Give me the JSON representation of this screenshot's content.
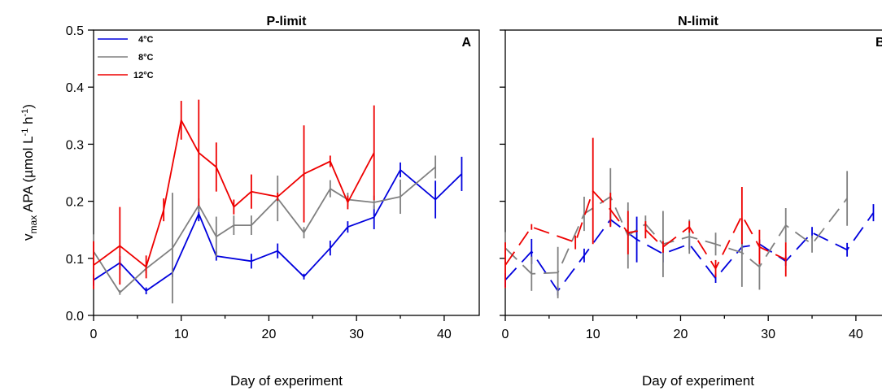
{
  "chart_data": [
    {
      "type": "line",
      "title": "P-limit",
      "panel_label": "A",
      "xlabel": "Day of experiment",
      "ylabel": "v",
      "ylabel_sub": "max",
      "ylabel_rest": " APA (µmol L",
      "ylabel_sup1": "-1",
      "ylabel_mid": " h",
      "ylabel_sup2": "-1",
      "ylabel_end": ")",
      "xlim": [
        0,
        44
      ],
      "ylim": [
        0.0,
        0.5
      ],
      "xticks": [
        "0",
        "10",
        "20",
        "30",
        "40"
      ],
      "yticks": [
        "0.0",
        "0.1",
        "0.2",
        "0.3",
        "0.4",
        "0.5"
      ],
      "legend": {
        "position": "top-left"
      },
      "series": [
        {
          "name": "4°C",
          "color": "#0000dd",
          "dash": "solid",
          "points": [
            {
              "x": 0,
              "y": 0.062,
              "err": 0.01
            },
            {
              "x": 3,
              "y": 0.092,
              "err": 0.012
            },
            {
              "x": 6,
              "y": 0.043,
              "err": 0.006
            },
            {
              "x": 9,
              "y": 0.075,
              "err": 0.008
            },
            {
              "x": 12,
              "y": 0.178,
              "err": 0.013
            },
            {
              "x": 14,
              "y": 0.104,
              "err": 0.008
            },
            {
              "x": 18,
              "y": 0.095,
              "err": 0.013
            },
            {
              "x": 21,
              "y": 0.113,
              "err": 0.013
            },
            {
              "x": 24,
              "y": 0.068,
              "err": 0.005
            },
            {
              "x": 27,
              "y": 0.118,
              "err": 0.013
            },
            {
              "x": 29,
              "y": 0.155,
              "err": 0.01
            },
            {
              "x": 32,
              "y": 0.172,
              "err": 0.021
            },
            {
              "x": 35,
              "y": 0.255,
              "err": 0.013
            },
            {
              "x": 39,
              "y": 0.203,
              "err": 0.033
            },
            {
              "x": 42,
              "y": 0.248,
              "err": 0.03
            }
          ]
        },
        {
          "name": "8°C",
          "color": "#808080",
          "dash": "solid",
          "points": [
            {
              "x": 0,
              "y": 0.112,
              "err": 0.03
            },
            {
              "x": 3,
              "y": 0.04,
              "err": 0.004
            },
            {
              "x": 6,
              "y": 0.082,
              "err": 0.008
            },
            {
              "x": 9,
              "y": 0.118,
              "err": 0.097
            },
            {
              "x": 12,
              "y": 0.193,
              "err": 0.012
            },
            {
              "x": 14,
              "y": 0.138,
              "err": 0.035
            },
            {
              "x": 16,
              "y": 0.158,
              "err": 0.017
            },
            {
              "x": 18,
              "y": 0.158,
              "err": 0.017
            },
            {
              "x": 21,
              "y": 0.205,
              "err": 0.04
            },
            {
              "x": 24,
              "y": 0.145,
              "err": 0.01
            },
            {
              "x": 27,
              "y": 0.222,
              "err": 0.015
            },
            {
              "x": 29,
              "y": 0.203,
              "err": 0.012
            },
            {
              "x": 32,
              "y": 0.198,
              "err": 0.012
            },
            {
              "x": 35,
              "y": 0.208,
              "err": 0.03
            },
            {
              "x": 39,
              "y": 0.26,
              "err": 0.02
            }
          ]
        },
        {
          "name": "12°C",
          "color": "#ee0000",
          "dash": "solid",
          "points": [
            {
              "x": 0,
              "y": 0.088,
              "err": 0.042
            },
            {
              "x": 3,
              "y": 0.122,
              "err": 0.068
            },
            {
              "x": 6,
              "y": 0.085,
              "err": 0.02
            },
            {
              "x": 8,
              "y": 0.185,
              "err": 0.02
            },
            {
              "x": 10,
              "y": 0.342,
              "err": 0.034
            },
            {
              "x": 12,
              "y": 0.285,
              "err": 0.093
            },
            {
              "x": 14,
              "y": 0.26,
              "err": 0.043
            },
            {
              "x": 16,
              "y": 0.19,
              "err": 0.013
            },
            {
              "x": 18,
              "y": 0.217,
              "err": 0.03
            },
            {
              "x": 21,
              "y": 0.208,
              "err": 0.007
            },
            {
              "x": 24,
              "y": 0.248,
              "err": 0.085
            },
            {
              "x": 27,
              "y": 0.27,
              "err": 0.01
            },
            {
              "x": 29,
              "y": 0.198,
              "err": 0.012
            },
            {
              "x": 32,
              "y": 0.285,
              "err": 0.083
            }
          ]
        }
      ]
    },
    {
      "type": "line",
      "title": "N-limit",
      "panel_label": "B",
      "xlabel": "Day of experiment",
      "xlim": [
        0,
        44
      ],
      "ylim": [
        0.0,
        0.5
      ],
      "xticks": [
        "0",
        "10",
        "20",
        "30",
        "40"
      ],
      "series": [
        {
          "name": "4°C",
          "color": "#0000dd",
          "dash": "dashed",
          "points": [
            {
              "x": 0,
              "y": 0.062,
              "err": 0.012
            },
            {
              "x": 3,
              "y": 0.112,
              "err": 0.022
            },
            {
              "x": 6,
              "y": 0.043,
              "err": 0.008
            },
            {
              "x": 9,
              "y": 0.105,
              "err": 0.012
            },
            {
              "x": 12,
              "y": 0.168,
              "err": 0.012
            },
            {
              "x": 15,
              "y": 0.133,
              "err": 0.04
            },
            {
              "x": 18,
              "y": 0.108,
              "err": 0.015
            },
            {
              "x": 21,
              "y": 0.125,
              "err": 0.01
            },
            {
              "x": 24,
              "y": 0.065,
              "err": 0.008
            },
            {
              "x": 27,
              "y": 0.12,
              "err": 0.008
            },
            {
              "x": 29,
              "y": 0.125,
              "err": 0.008
            },
            {
              "x": 32,
              "y": 0.095,
              "err": 0.008
            },
            {
              "x": 35,
              "y": 0.145,
              "err": 0.01
            },
            {
              "x": 39,
              "y": 0.115,
              "err": 0.012
            },
            {
              "x": 42,
              "y": 0.18,
              "err": 0.015
            }
          ]
        },
        {
          "name": "8°C",
          "color": "#808080",
          "dash": "dashed",
          "points": [
            {
              "x": 0,
              "y": 0.118,
              "err": 0.028
            },
            {
              "x": 3,
              "y": 0.073,
              "err": 0.03
            },
            {
              "x": 6,
              "y": 0.075,
              "err": 0.045
            },
            {
              "x": 9,
              "y": 0.178,
              "err": 0.03
            },
            {
              "x": 12,
              "y": 0.208,
              "err": 0.05
            },
            {
              "x": 14,
              "y": 0.14,
              "err": 0.058
            },
            {
              "x": 16,
              "y": 0.16,
              "err": 0.015
            },
            {
              "x": 18,
              "y": 0.125,
              "err": 0.058
            },
            {
              "x": 21,
              "y": 0.138,
              "err": 0.03
            },
            {
              "x": 24,
              "y": 0.125,
              "err": 0.02
            },
            {
              "x": 27,
              "y": 0.11,
              "err": 0.06
            },
            {
              "x": 29,
              "y": 0.085,
              "err": 0.04
            },
            {
              "x": 32,
              "y": 0.158,
              "err": 0.03
            },
            {
              "x": 35,
              "y": 0.125,
              "err": 0.015
            },
            {
              "x": 39,
              "y": 0.205,
              "err": 0.048
            }
          ]
        },
        {
          "name": "12°C",
          "color": "#ee0000",
          "dash": "dashed",
          "points": [
            {
              "x": 0,
              "y": 0.088,
              "err": 0.04
            },
            {
              "x": 3,
              "y": 0.155,
              "err": 0.005
            },
            {
              "x": 8,
              "y": 0.128,
              "err": 0.012
            },
            {
              "x": 10,
              "y": 0.218,
              "err": 0.093
            },
            {
              "x": 12,
              "y": 0.185,
              "err": 0.03
            },
            {
              "x": 14,
              "y": 0.145,
              "err": 0.038
            },
            {
              "x": 16,
              "y": 0.15,
              "err": 0.015
            },
            {
              "x": 18,
              "y": 0.12,
              "err": 0.01
            },
            {
              "x": 21,
              "y": 0.155,
              "err": 0.01
            },
            {
              "x": 24,
              "y": 0.082,
              "err": 0.015
            },
            {
              "x": 27,
              "y": 0.175,
              "err": 0.05
            },
            {
              "x": 29,
              "y": 0.12,
              "err": 0.03
            },
            {
              "x": 32,
              "y": 0.098,
              "err": 0.03
            }
          ]
        }
      ]
    }
  ]
}
